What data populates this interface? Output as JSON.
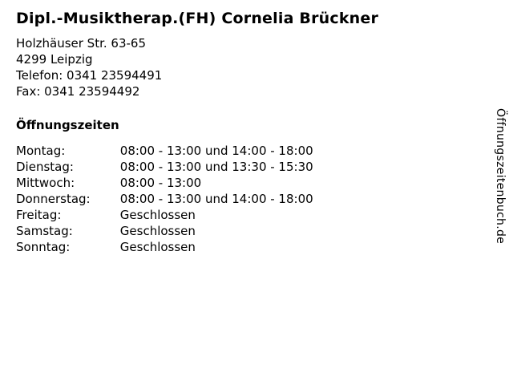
{
  "header": {
    "title": "Dipl.-Musiktherap.(FH) Cornelia Brückner",
    "street": "Holzhäuser Str. 63-65",
    "city": "4299 Leipzig",
    "telefon": "Telefon: 0341 23594491",
    "fax": "Fax: 0341 23594492"
  },
  "hours": {
    "heading": "Öffnungszeiten",
    "rows": [
      {
        "day": "Montag:",
        "time": "08:00 - 13:00 und 14:00 - 18:00"
      },
      {
        "day": "Dienstag:",
        "time": "08:00 - 13:00 und 13:30 - 15:30"
      },
      {
        "day": "Mittwoch:",
        "time": "08:00 - 13:00"
      },
      {
        "day": "Donnerstag:",
        "time": "08:00 - 13:00 und 14:00 - 18:00"
      },
      {
        "day": "Freitag:",
        "time": "Geschlossen"
      },
      {
        "day": "Samstag:",
        "time": "Geschlossen"
      },
      {
        "day": "Sonntag:",
        "time": "Geschlossen"
      }
    ]
  },
  "branding": {
    "label": "Öffnungszeitenbuch.de"
  },
  "colors": {
    "text": "#000000",
    "background": "#ffffff"
  }
}
